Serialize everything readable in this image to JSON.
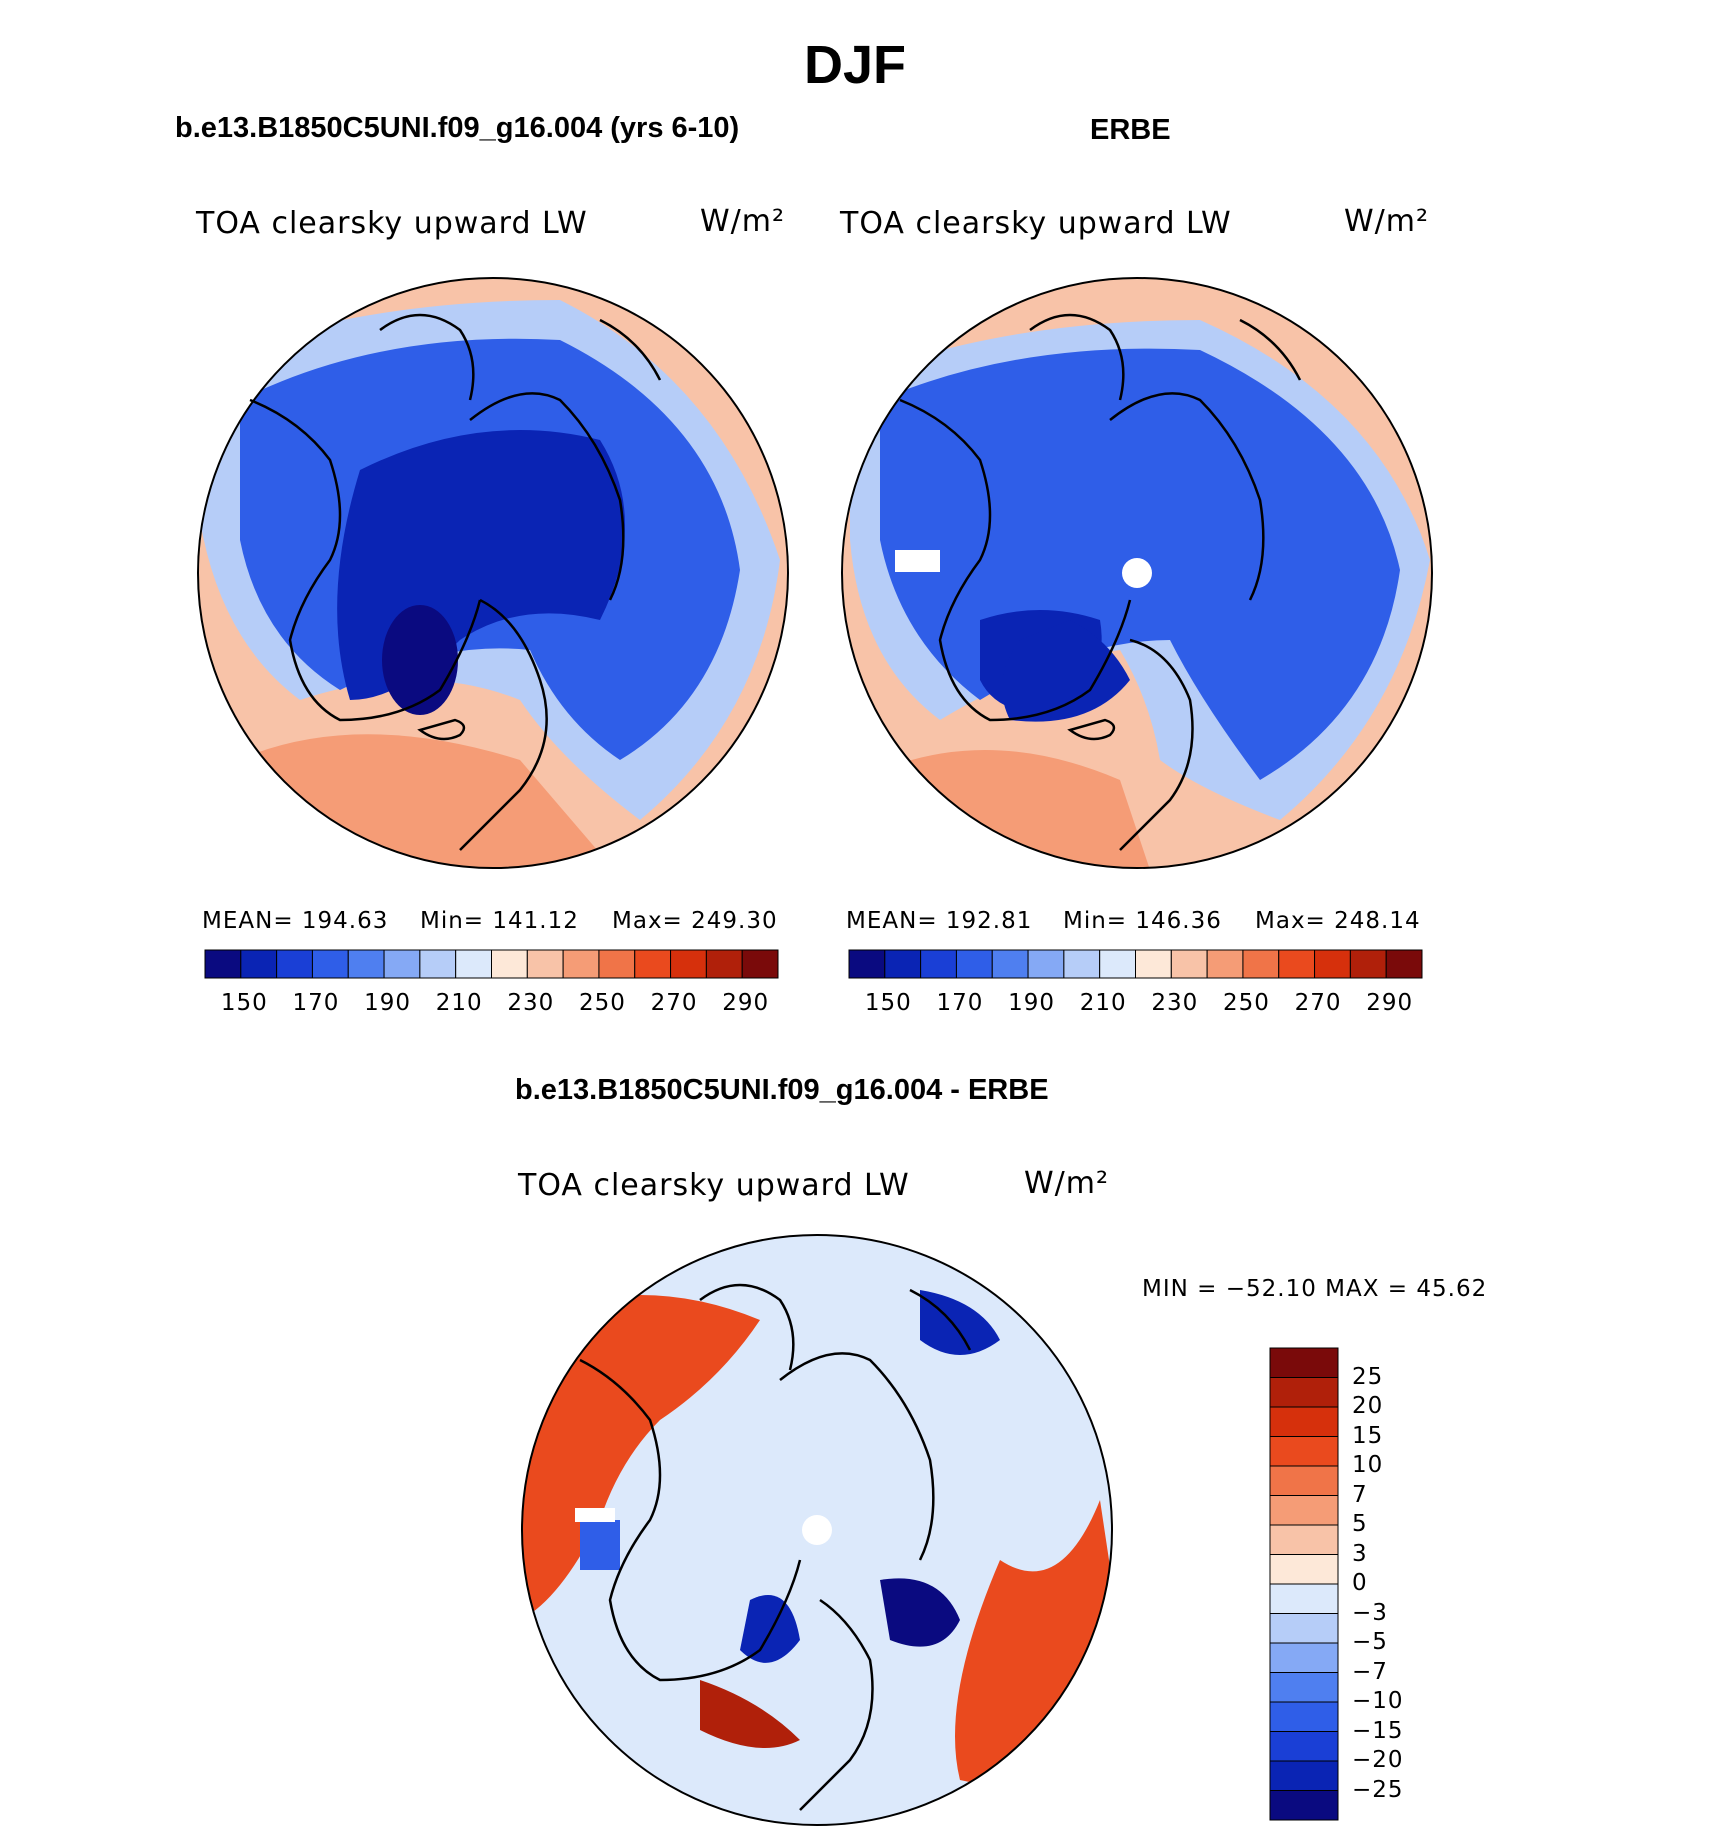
{
  "title": "DJF",
  "panels": [
    {
      "header": "b.e13.B1850C5UNI.f09_g16.004 (yrs 6-10)",
      "variable": "TOA clearsky upward LW",
      "units": "W/m²",
      "stats": {
        "mean": "MEAN= 194.63",
        "min": "Min= 141.12",
        "max": "Max= 249.30"
      }
    },
    {
      "header": "ERBE",
      "variable": "TOA clearsky upward LW",
      "units": "W/m²",
      "stats": {
        "mean": "MEAN= 192.81",
        "min": "Min= 146.36",
        "max": "Max= 248.14"
      }
    }
  ],
  "colorbar_top": {
    "tick_labels": [
      "150",
      "170",
      "190",
      "210",
      "230",
      "250",
      "270",
      "290"
    ],
    "colors": [
      "#0a0a80",
      "#0a24b4",
      "#1a3fd6",
      "#2f5ee8",
      "#4f7ff0",
      "#85a9f5",
      "#b6cdf8",
      "#dce9fb",
      "#fde8d8",
      "#f8c3a8",
      "#f59c76",
      "#f07448",
      "#ea4a1e",
      "#d6300c",
      "#b0200a",
      "#7a0a0a"
    ]
  },
  "difference": {
    "header": "b.e13.B1850C5UNI.f09_g16.004 - ERBE",
    "variable": "TOA clearsky upward LW",
    "units": "W/m²",
    "minmax": "MIN = −52.10 MAX =   45.62",
    "tick_labels": [
      "25",
      "20",
      "15",
      "10",
      "7",
      "5",
      "3",
      "0",
      "−3",
      "−5",
      "−7",
      "−10",
      "−15",
      "−20",
      "−25"
    ],
    "colors": [
      "#7a0a0a",
      "#b0200a",
      "#d6300c",
      "#ea4a1e",
      "#f07448",
      "#f59c76",
      "#f8c3a8",
      "#fde8d8",
      "#dce9fb",
      "#b6cdf8",
      "#85a9f5",
      "#4f7ff0",
      "#2f5ee8",
      "#1a3fd6",
      "#0a24b4",
      "#0a0a80"
    ]
  },
  "colors": {
    "warm_fill": "#f8c3a8",
    "warm_deep": "#f59c76",
    "cool_fill": "#2f5ee8",
    "cool_deep": "#0a24b4",
    "pale_blue": "#b6cdf8",
    "diff_bg": "#dce9fb",
    "diff_warm": "#ea4a1e"
  }
}
